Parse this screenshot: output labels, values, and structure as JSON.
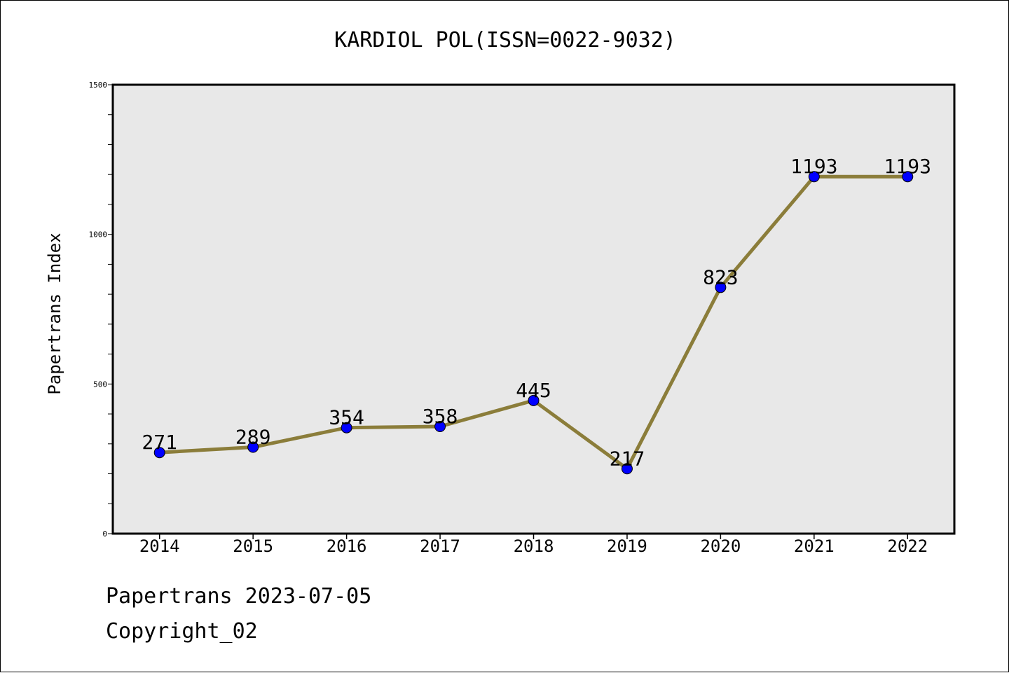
{
  "chart_data": {
    "type": "line",
    "title": "KARDIOL POL(ISSN=0022-9032)",
    "xlabel": "",
    "ylabel": "Papertrans Index",
    "x": [
      "2014",
      "2015",
      "2016",
      "2017",
      "2018",
      "2019",
      "2020",
      "2021",
      "2022"
    ],
    "series": [
      {
        "values": [
          271,
          289,
          354,
          358,
          445,
          217,
          823,
          1193,
          1193
        ]
      }
    ],
    "data_labels": [
      "271",
      "289",
      "354",
      "358",
      "445",
      "217",
      "823",
      "1193",
      "1193"
    ],
    "ylim": [
      0,
      1500
    ],
    "y_tick_labels": [
      "0",
      "500",
      "1000",
      "1500"
    ],
    "grid": false,
    "legend": "none",
    "colors": {
      "line": "#8b7d3a",
      "marker": "#0000ff",
      "plot_background": "#e8e8e8"
    }
  },
  "footer": {
    "line1": "Papertrans 2023-07-05",
    "line2": "Copyright_02"
  }
}
